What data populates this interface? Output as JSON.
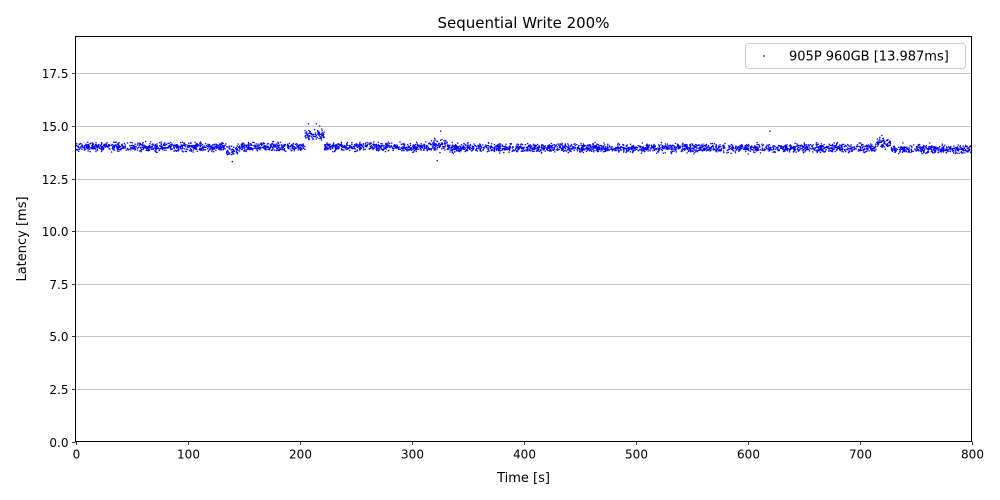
{
  "chart_data": {
    "type": "scatter",
    "title": "Sequential Write 200%",
    "xlabel": "Time [s]",
    "ylabel": "Latency [ms]",
    "xlim": [
      0,
      800
    ],
    "ylim": [
      0,
      19.25
    ],
    "xticks": [
      0,
      100,
      200,
      300,
      400,
      500,
      600,
      700,
      800
    ],
    "yticks": [
      0.0,
      2.5,
      5.0,
      7.5,
      10.0,
      12.5,
      15.0,
      17.5
    ],
    "ytick_labels": [
      "0.0",
      "2.5",
      "5.0",
      "7.5",
      "10.0",
      "12.5",
      "15.0",
      "17.5"
    ],
    "grid": "y-major",
    "legend_position": "top-right",
    "series": [
      {
        "name": "905P 960GB [13.987ms]",
        "color": "#0000ff",
        "marker": "dot",
        "typical_latency_ms": 13.987,
        "segments": [
          {
            "x": [
              0,
              135
            ],
            "y_center": 14.0,
            "y_spread": 0.25
          },
          {
            "x": [
              135,
              145
            ],
            "y_center": 13.8,
            "y_spread": 0.3
          },
          {
            "x": [
              145,
              205
            ],
            "y_center": 14.0,
            "y_spread": 0.25
          },
          {
            "x": [
              205,
              222
            ],
            "y_center": 14.6,
            "y_spread": 0.35
          },
          {
            "x": [
              222,
              315
            ],
            "y_center": 14.0,
            "y_spread": 0.25
          },
          {
            "x": [
              315,
              332
            ],
            "y_center": 14.1,
            "y_spread": 0.35
          },
          {
            "x": [
              332,
              715
            ],
            "y_center": 13.95,
            "y_spread": 0.25
          },
          {
            "x": [
              715,
              728
            ],
            "y_center": 14.2,
            "y_spread": 0.3
          },
          {
            "x": [
              728,
              800
            ],
            "y_center": 13.9,
            "y_spread": 0.25
          }
        ],
        "outliers": [
          {
            "x": 140,
            "y": 13.3
          },
          {
            "x": 208,
            "y": 15.1
          },
          {
            "x": 215,
            "y": 15.1
          },
          {
            "x": 218,
            "y": 15.0
          },
          {
            "x": 323,
            "y": 13.35
          },
          {
            "x": 326,
            "y": 14.75
          },
          {
            "x": 620,
            "y": 14.75
          },
          {
            "x": 720,
            "y": 14.55
          }
        ]
      }
    ]
  }
}
